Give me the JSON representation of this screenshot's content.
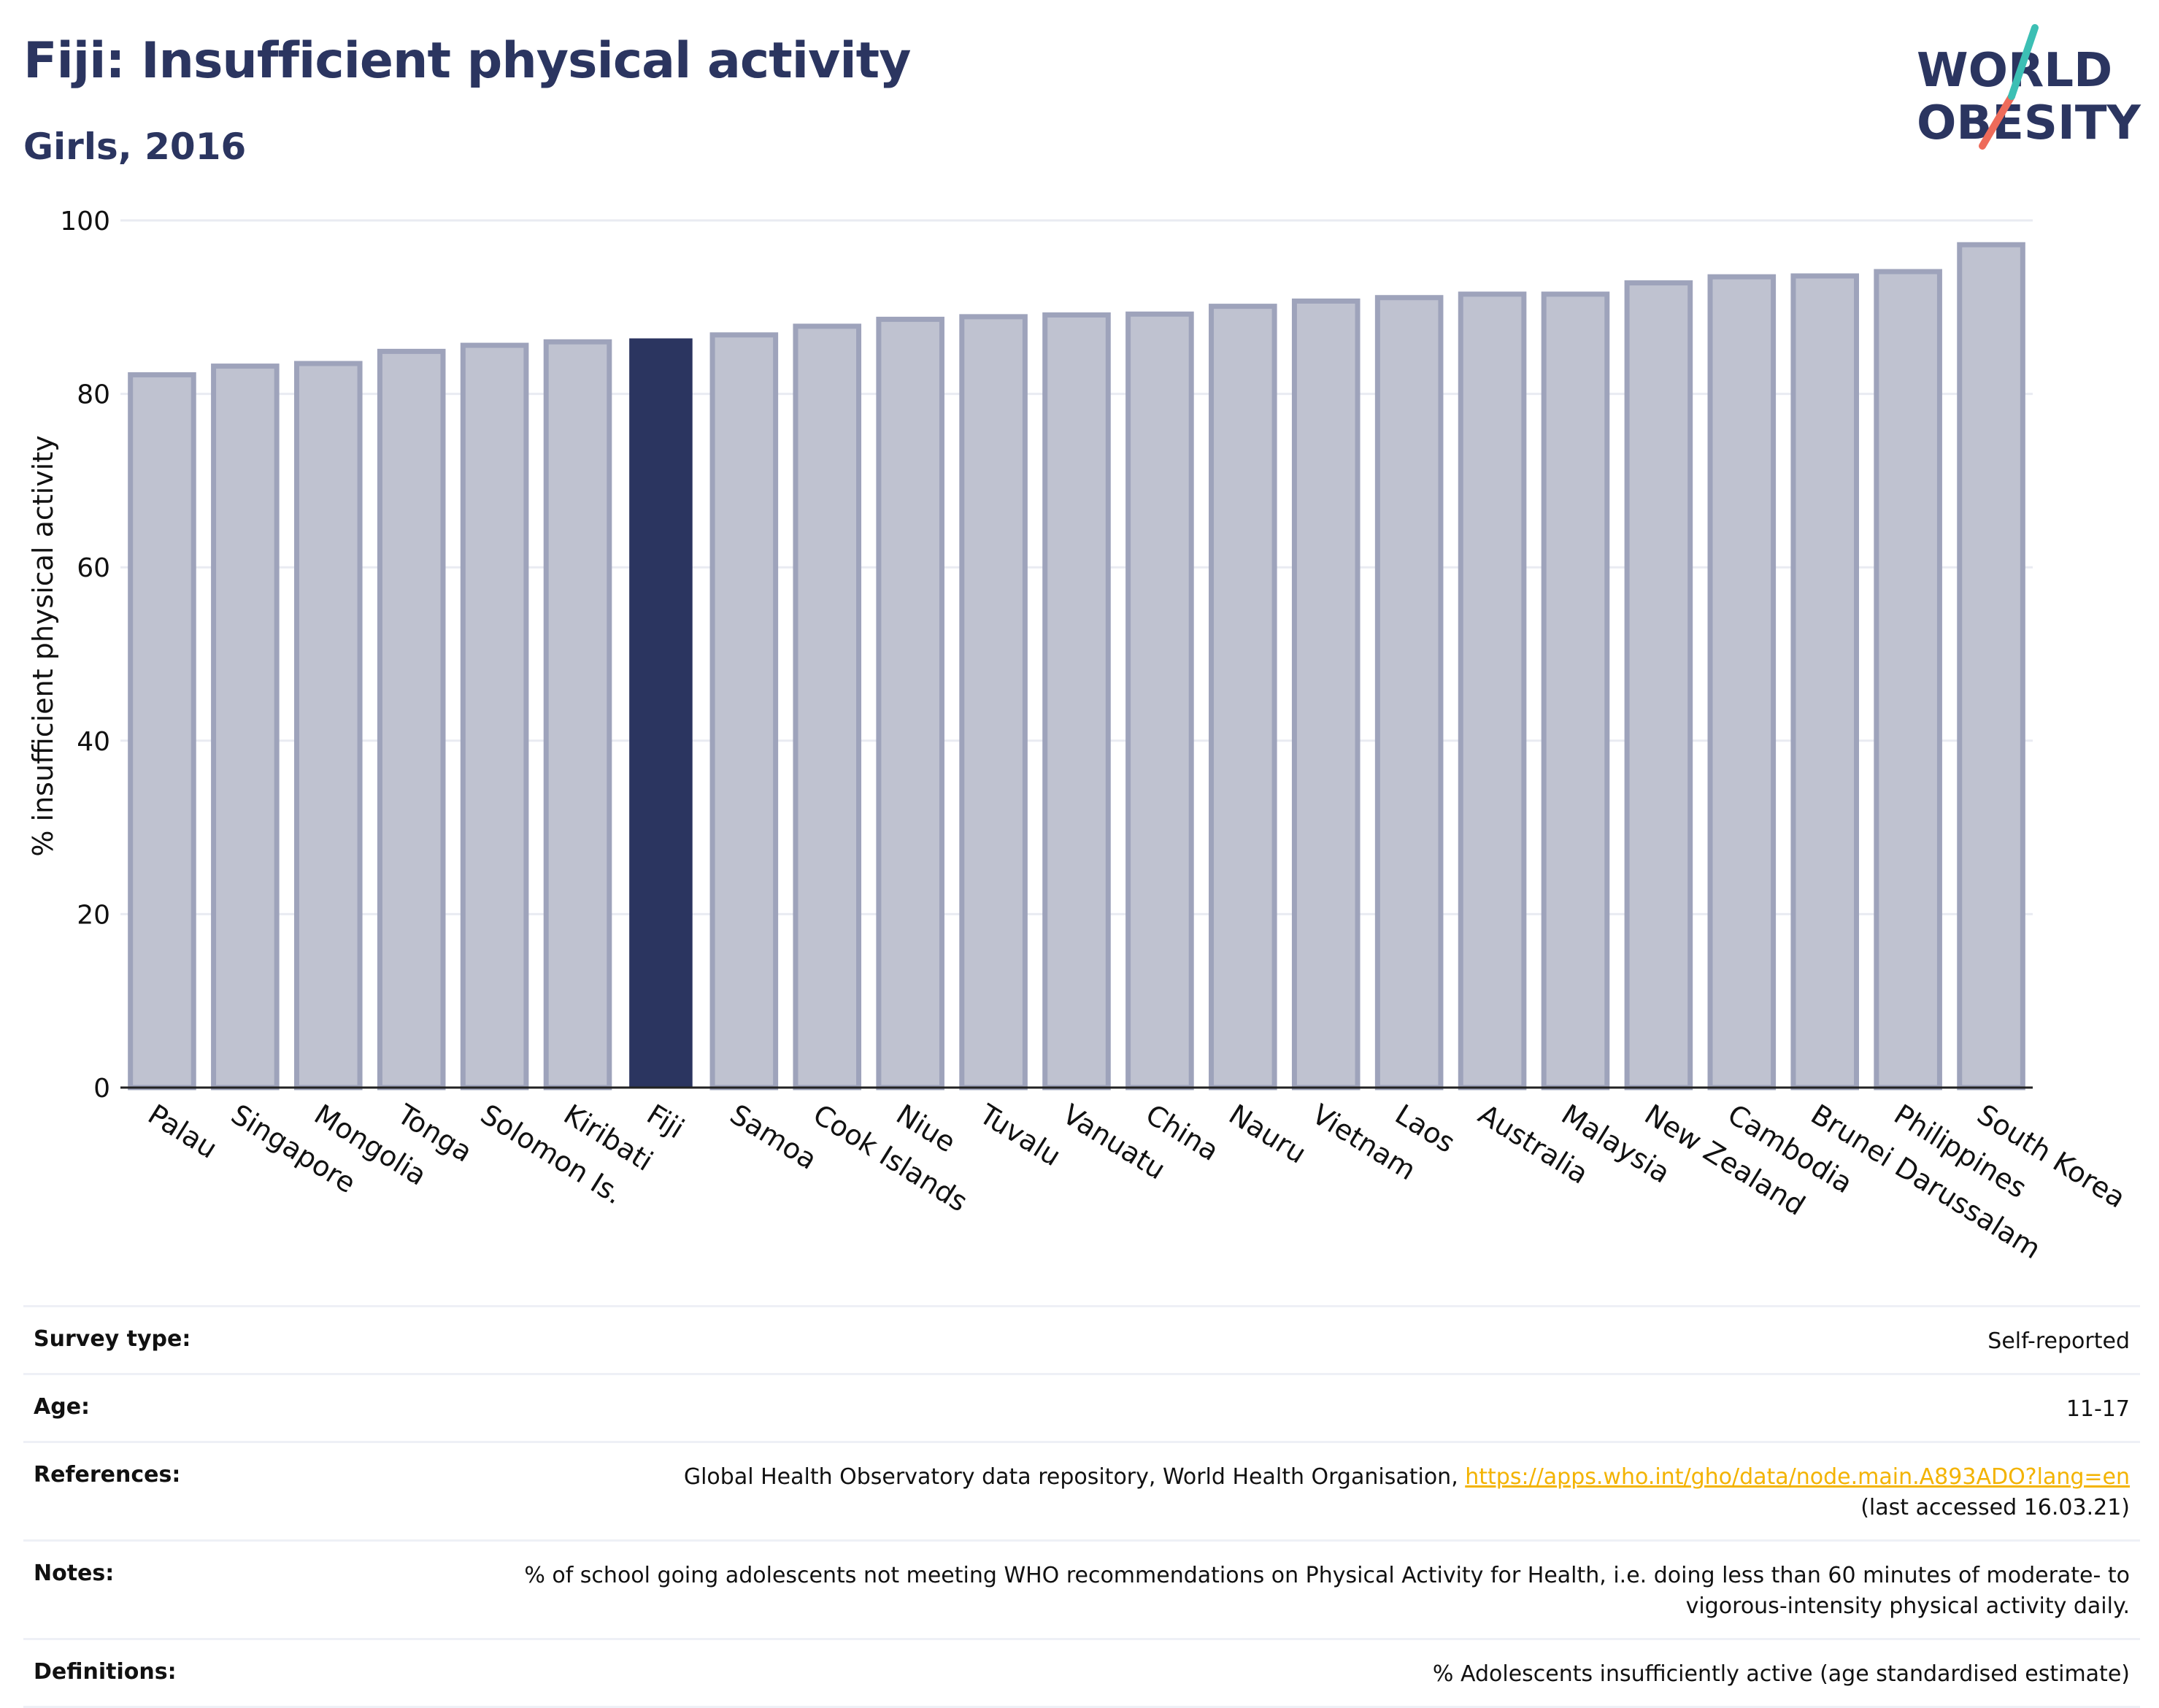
{
  "title": "Fiji: Insufficient physical activity",
  "subtitle": "Girls, 2016",
  "logo": {
    "line1": "WORLD",
    "line2": "OBESITY"
  },
  "colors": {
    "title": "#2b3560",
    "bar": "#bfc2d0",
    "bar_border": "#9ea3bb",
    "highlight": "#2b3560",
    "grid": "#e9ebf2",
    "logo_teal": "#3cbfb4",
    "logo_coral": "#ee6b5a",
    "link": "#f3b300"
  },
  "chart_data": {
    "type": "bar",
    "ylabel": "% insufficient physical activity",
    "ylim": [
      0,
      100
    ],
    "yticks": [
      "0",
      "20",
      "40",
      "60",
      "80",
      "100"
    ],
    "highlight": "Fiji",
    "grid": true,
    "categories": [
      "Palau",
      "Singapore",
      "Mongolia",
      "Tonga",
      "Solomon Is.",
      "Kiribati",
      "Fiji",
      "Samoa",
      "Cook Islands",
      "Niue",
      "Tuvalu",
      "Vanuatu",
      "China",
      "Nauru",
      "Vietnam",
      "Laos",
      "Australia",
      "Malaysia",
      "New Zealand",
      "Cambodia",
      "Brunei Darussalam",
      "Philippines",
      "South Korea"
    ],
    "values": [
      82.2,
      83.2,
      83.5,
      84.9,
      85.6,
      86.0,
      86.4,
      86.8,
      87.8,
      88.6,
      88.9,
      89.1,
      89.2,
      90.1,
      90.7,
      91.1,
      91.5,
      91.5,
      92.8,
      93.5,
      93.6,
      94.1,
      97.2
    ]
  },
  "info": [
    {
      "label": "Survey type:",
      "value": "Self-reported"
    },
    {
      "label": "Age:",
      "value": "11-17"
    },
    {
      "label": "References:",
      "value": "Global Health Observatory data repository, World Health Organisation, ",
      "link": "https://apps.who.int/gho/data/node.main.A893ADO?lang=en",
      "value2": "(last accessed 16.03.21)"
    },
    {
      "label": "Notes:",
      "value": "% of school going adolescents not meeting WHO recommendations on Physical Activity for Health, i.e. doing less than 60 minutes of moderate- to vigorous-intensity physical activity daily."
    },
    {
      "label": "Definitions:",
      "value": "% Adolescents insufficiently active (age standardised estimate)"
    }
  ]
}
